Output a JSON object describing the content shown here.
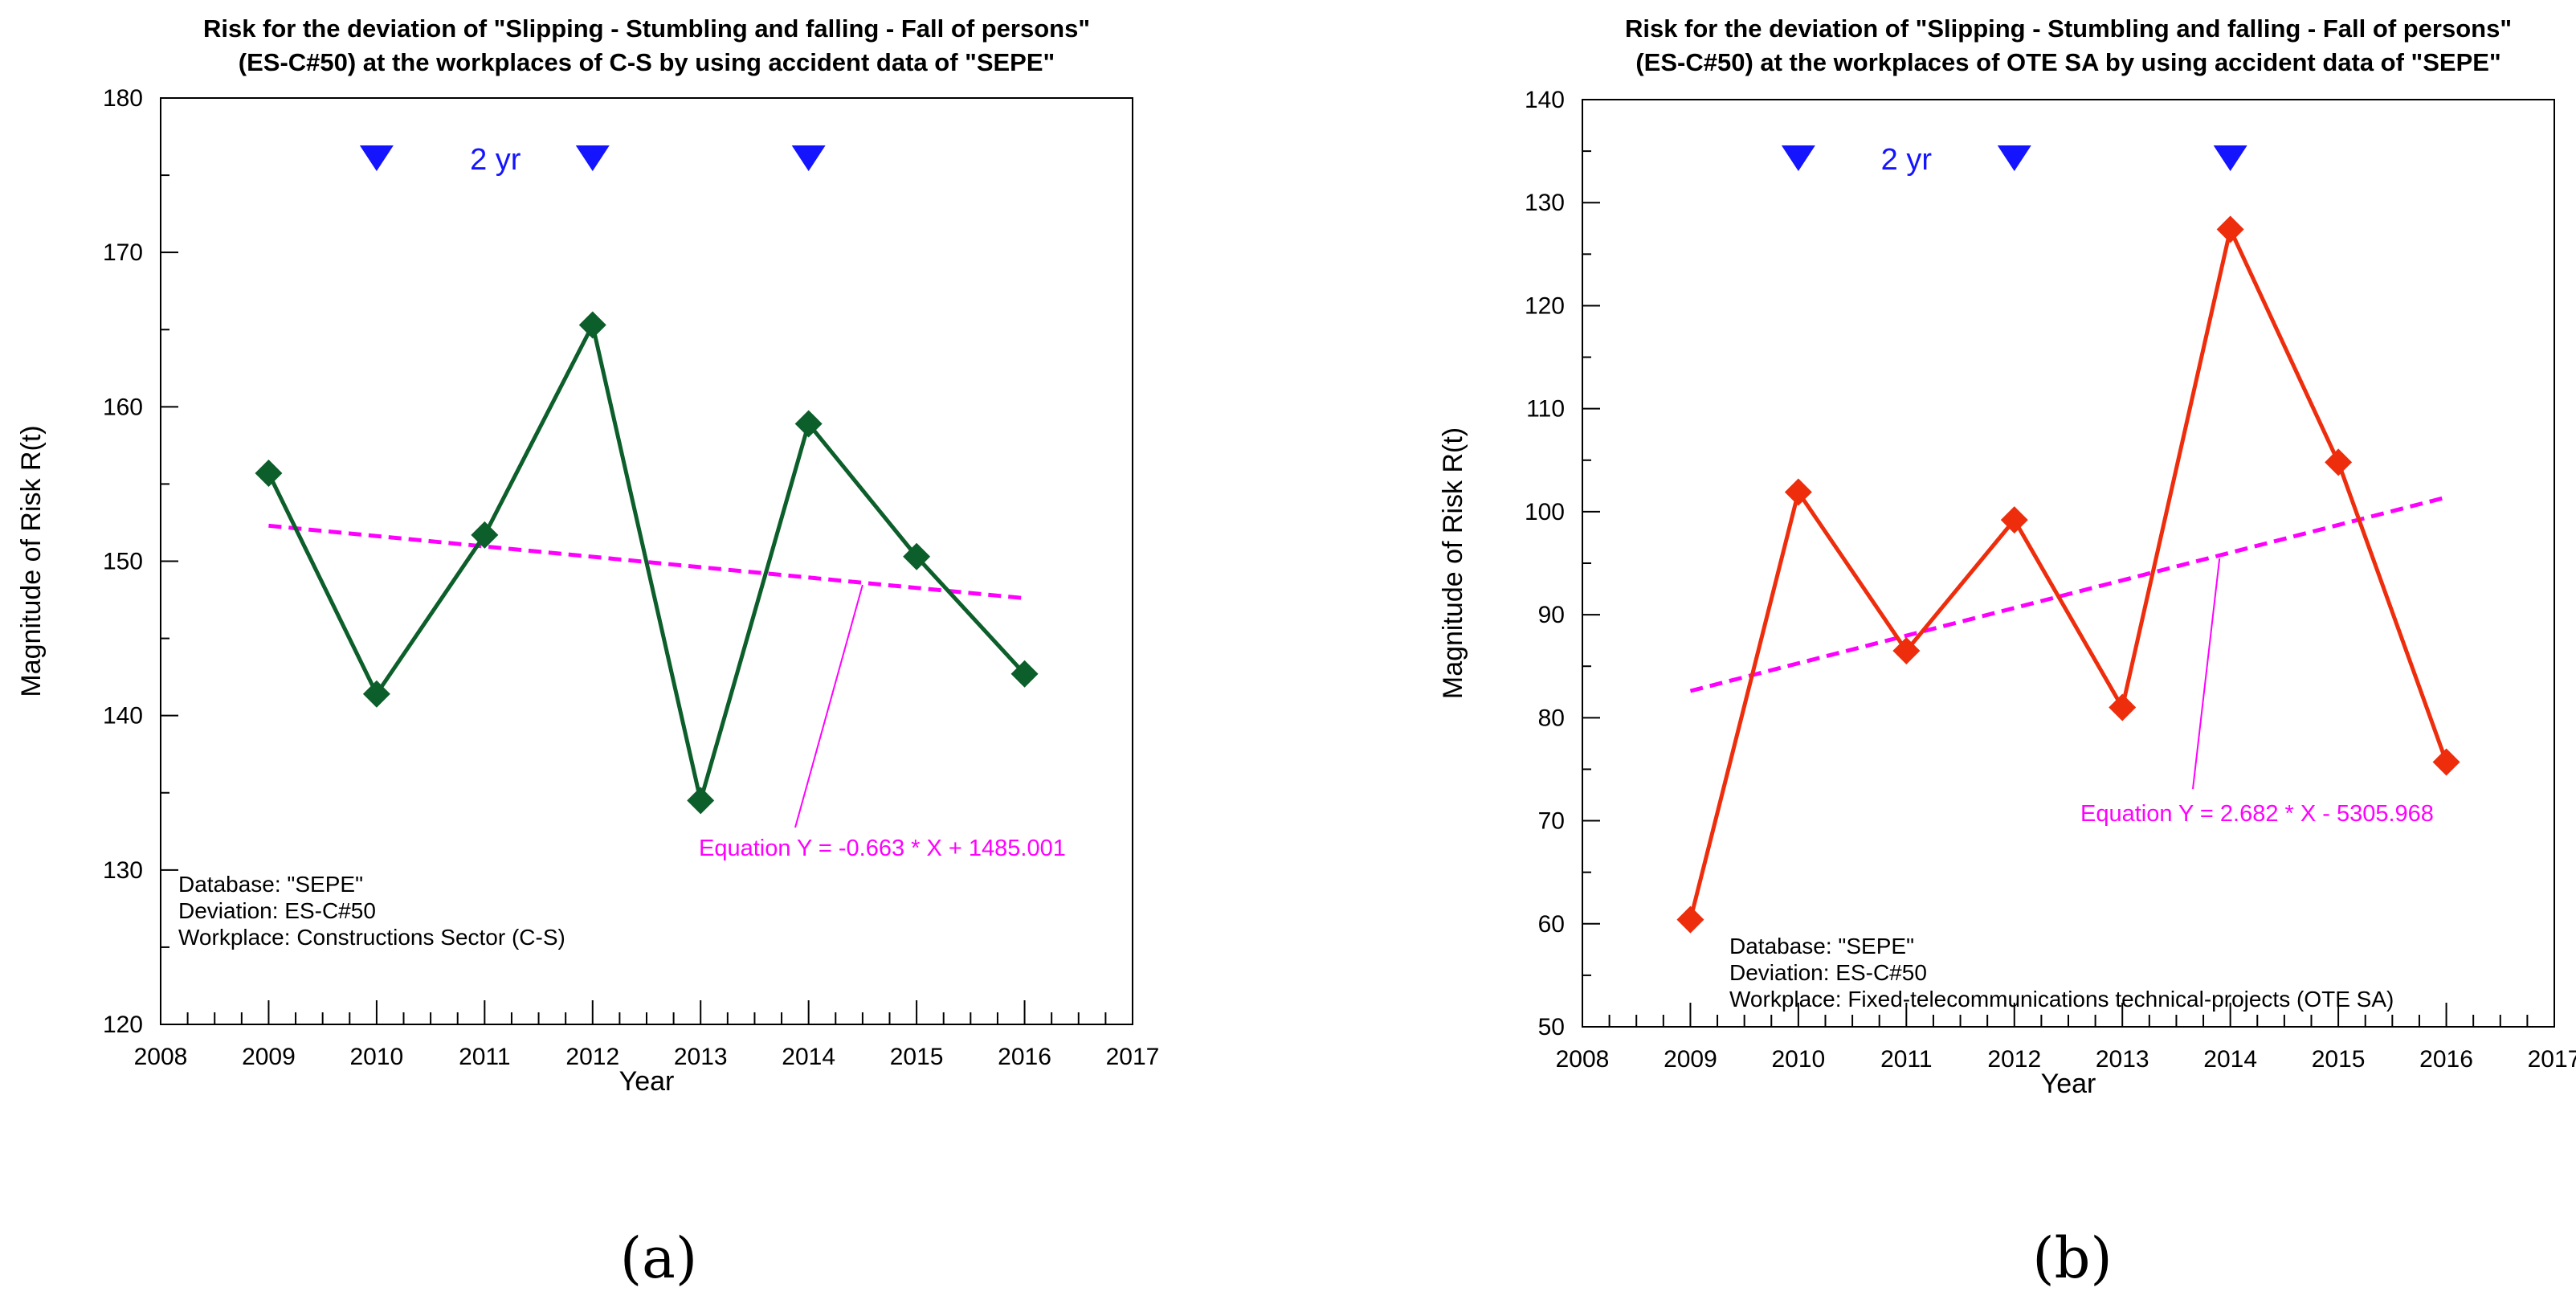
{
  "chart_data": [
    {
      "type": "line",
      "title_line1": "Risk for the deviation of \"Slipping - Stumbling and falling - Fall of persons\"",
      "title_line2": "(ES-C#50) at the workplaces of C-S by using accident data of \"SEPE\"",
      "xlabel": "Year",
      "ylabel": "Magnitude of Risk R(t)",
      "xlim": [
        2008,
        2017
      ],
      "ylim": [
        120,
        180
      ],
      "xticks": [
        2008,
        2009,
        2010,
        2011,
        2012,
        2013,
        2014,
        2015,
        2016,
        2017
      ],
      "yticks": [
        120,
        130,
        140,
        150,
        160,
        170,
        180
      ],
      "series": [
        {
          "name": "Risk R(t)",
          "color": "#0c5e2a",
          "x": [
            2009,
            2010,
            2011,
            2012,
            2013,
            2014,
            2015,
            2016
          ],
          "values": [
            155.7,
            141.4,
            151.7,
            165.3,
            134.5,
            158.9,
            150.3,
            142.7
          ]
        }
      ],
      "trend": {
        "color": "#ff00ff",
        "slope": -0.663,
        "intercept": 1485.001,
        "x": [
          2009,
          2016
        ],
        "values": [
          152.3,
          147.6
        ]
      },
      "equation_label": "Equation Y = -0.663 * X + 1485.001",
      "equation_pointer_x": 2014.5,
      "period_markers": [
        2010,
        2012,
        2014
      ],
      "period_label": "2 yr",
      "period_label_x": 2011.1,
      "marker_color": "#1414ff",
      "info_lines": [
        "Database: \"SEPE\"",
        "Deviation: ES-C#50",
        "Workplace: Constructions Sector (C-S)"
      ],
      "caption": "(a)"
    },
    {
      "type": "line",
      "title_line1": "Risk for the deviation of \"Slipping - Stumbling and falling - Fall of persons\"",
      "title_line2": "(ES-C#50) at the workplaces of OTE SA by using accident data of \"SEPE\"",
      "xlabel": "Year",
      "ylabel": "Magnitude of Risk R(t)",
      "xlim": [
        2008,
        2017
      ],
      "ylim": [
        50,
        140
      ],
      "xticks": [
        2008,
        2009,
        2010,
        2011,
        2012,
        2013,
        2014,
        2015,
        2016,
        2017
      ],
      "yticks": [
        50,
        60,
        70,
        80,
        90,
        100,
        110,
        120,
        130,
        140
      ],
      "series": [
        {
          "name": "Risk R(t)",
          "color": "#ee2d0d",
          "x": [
            2009,
            2010,
            2011,
            2012,
            2013,
            2014,
            2015,
            2016
          ],
          "values": [
            60.4,
            101.9,
            86.5,
            99.2,
            81.0,
            127.4,
            104.8,
            75.7
          ]
        }
      ],
      "trend": {
        "color": "#ff00ff",
        "slope": 2.682,
        "intercept": -5305.968,
        "x": [
          2009,
          2016
        ],
        "values": [
          82.6,
          101.4
        ]
      },
      "equation_label": "Equation Y = 2.682 * X - 5305.968",
      "equation_pointer_x": 2013.9,
      "period_markers": [
        2010,
        2012,
        2014
      ],
      "period_label": "2 yr",
      "period_label_x": 2011,
      "marker_color": "#1414ff",
      "info_lines": [
        "Database: \"SEPE\"",
        "Deviation: ES-C#50",
        "Workplace: Fixed-telecommunications technical-projects (OTE SA)"
      ],
      "caption": "(b)"
    }
  ]
}
